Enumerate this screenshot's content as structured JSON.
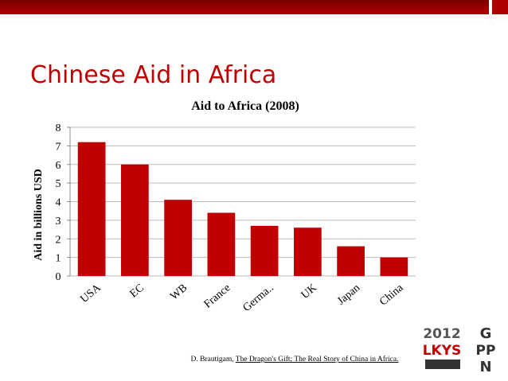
{
  "slide_title": "Chinese Aid in Africa",
  "source": {
    "author": "D. Brautigam, ",
    "book": "The Dragon's Gift; The Real Story of China in Africa."
  },
  "logo": {
    "year": "2012",
    "school": "LKYS",
    "g": "G",
    "pp": "PP",
    "n": "N"
  },
  "chart_data": {
    "type": "bar",
    "title": "Aid to Africa (2008)",
    "y_label": "Aid in billions USD",
    "categories": [
      "USA",
      "EC",
      "WB",
      "France",
      "Germa..",
      "UK",
      "Japan",
      "China"
    ],
    "values": [
      7.2,
      6.0,
      4.1,
      3.4,
      2.7,
      2.6,
      1.6,
      1.0
    ],
    "color": "#c00000",
    "ylim": [
      0,
      8
    ],
    "yticks": [
      0,
      1,
      2,
      3,
      4,
      5,
      6,
      7,
      8
    ],
    "grid": true
  }
}
